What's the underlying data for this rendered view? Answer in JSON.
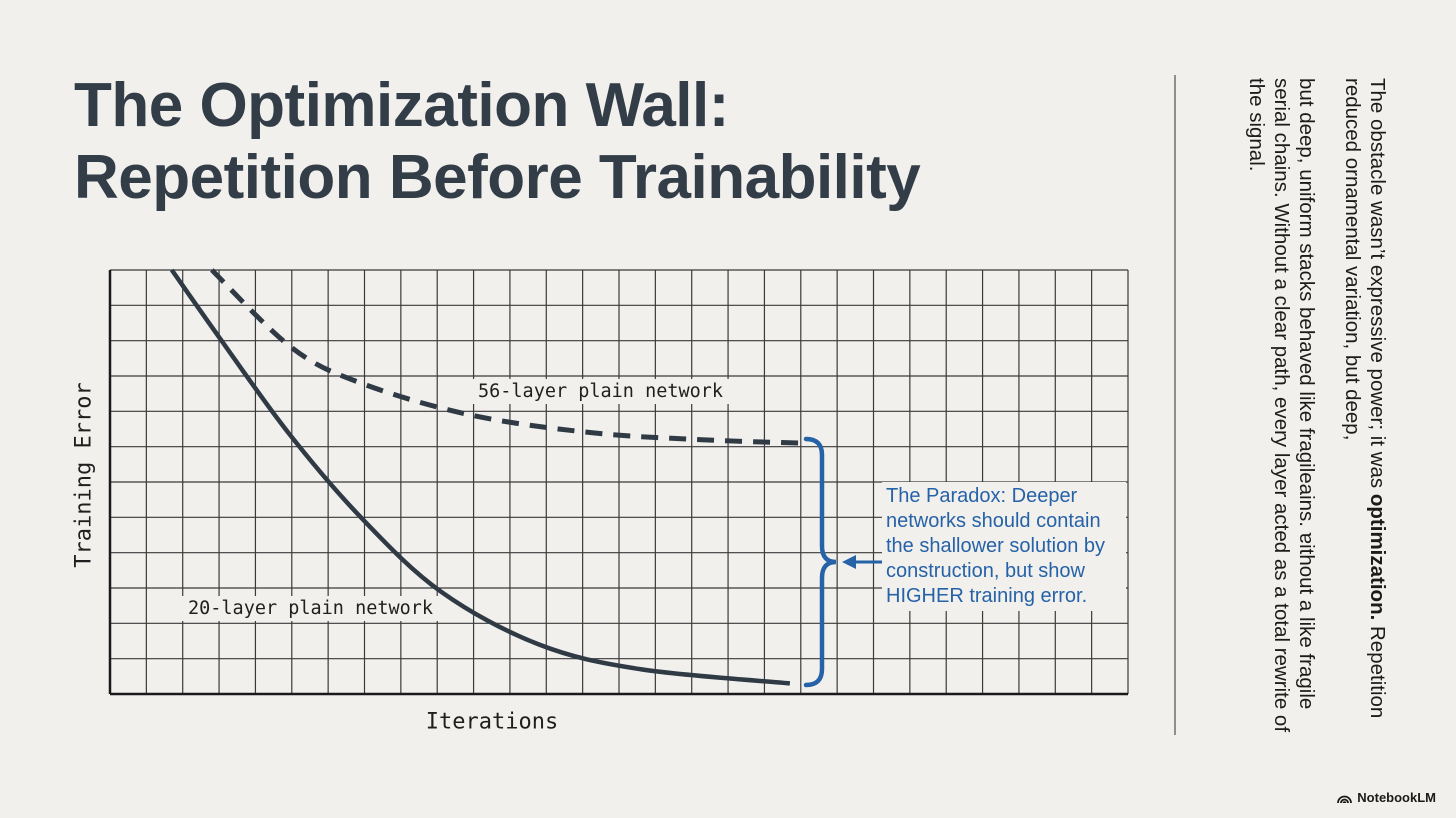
{
  "title": {
    "line1": "The Optimization Wall:",
    "line2": "Repetition Before Trainability"
  },
  "side_panel": {
    "paragraph1_pre": "The obstacle wasn’t expressive power; it was ",
    "paragraph1_bold": "optimization.",
    "paragraph1_post": " Repetition reduced ornamental variation, but deep,",
    "paragraph2": "but deep, uniform stacks behaved like fragileains. ɐithout a like fragile serial chains. Without a clear path, every layer acted as a total rewrite of the signal."
  },
  "annotation": {
    "text": "The Paradox: Deeper networks should contain the shallower solution by construction, but show HIGHER training error.",
    "color": "#2662a8"
  },
  "brand": {
    "name": "NotebookLM",
    "icon": "notebooklm-logo-icon"
  },
  "colors": {
    "background": "#f1f0ec",
    "curve": "#2f3a45",
    "grid": "#3a3a3a",
    "accent_blue": "#2662a8"
  },
  "chart_data": {
    "type": "line",
    "title": "",
    "xlabel": "Iterations",
    "ylabel": "Training Error",
    "grid": true,
    "x_ticks": [],
    "y_ticks": [],
    "xlim": [
      0,
      28
    ],
    "ylim": [
      0,
      12
    ],
    "series": [
      {
        "name": "56-layer plain network",
        "style": "dashed",
        "x": [
          2.8,
          5.0,
          6.9,
          9.9,
          13.2,
          16.2,
          19.0
        ],
        "y": [
          12.0,
          9.8,
          8.8,
          7.9,
          7.4,
          7.2,
          7.1
        ]
      },
      {
        "name": "20-layer plain network",
        "style": "solid",
        "x": [
          1.7,
          3.0,
          4.9,
          6.9,
          9.1,
          11.8,
          14.6,
          18.7
        ],
        "y": [
          12.0,
          10.1,
          7.4,
          5.0,
          2.9,
          1.4,
          0.7,
          0.3
        ]
      }
    ],
    "annotations": [
      {
        "text": "56-layer plain network",
        "x": 10.2,
        "y": 8.4
      },
      {
        "text": "20-layer plain network",
        "x": 2.2,
        "y": 2.4
      },
      {
        "text": "The Paradox: Deeper networks should contain the shallower solution by construction, but show HIGHER training error.",
        "x": 21.3,
        "y": 3.7,
        "bracket_span_y": [
          0.3,
          7.1
        ]
      }
    ]
  },
  "chart_labels": {
    "xlabel": "Iterations",
    "ylabel": "Training Error",
    "series56": "56-layer plain network",
    "series20": "20-layer plain network"
  }
}
